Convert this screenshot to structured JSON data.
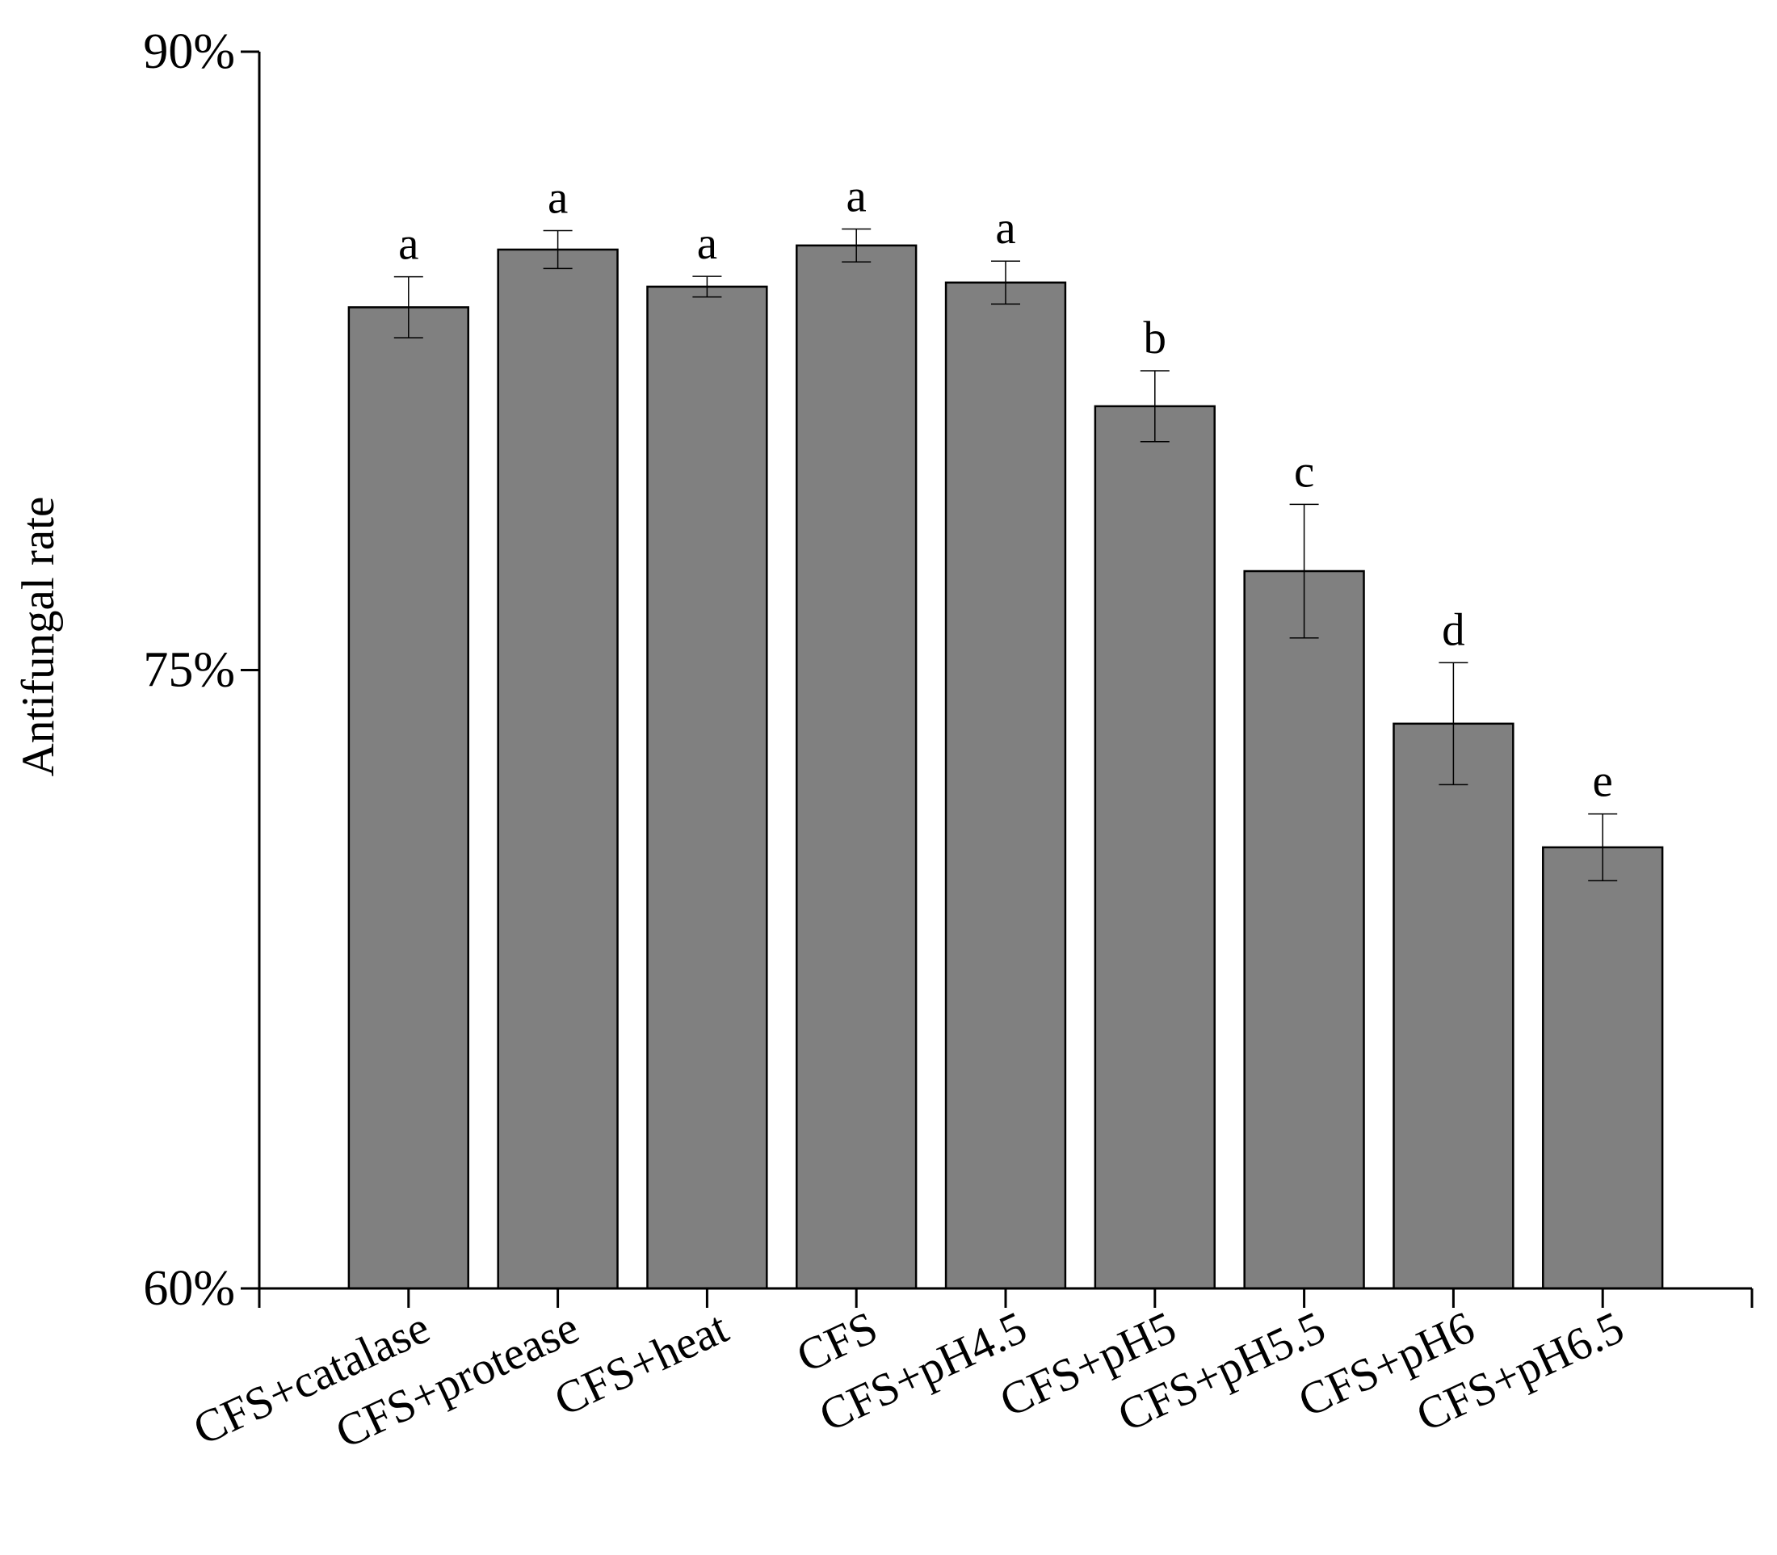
{
  "chart_data": {
    "type": "bar",
    "y_label": "Antifungal rate",
    "categories": [
      "CFS+catalase",
      "CFS+protease",
      "CFS+heat",
      "CFS",
      "CFS+pH4.5",
      "CFS+pH5",
      "CFS+pH5.5",
      "CFS+pH6",
      "CFS+pH6.5"
    ],
    "values": [
      83.8,
      85.2,
      84.3,
      85.3,
      84.4,
      81.4,
      77.4,
      73.7,
      70.7
    ],
    "errors": [
      0.74,
      0.46,
      0.25,
      0.4,
      0.52,
      0.86,
      1.62,
      1.48,
      0.81
    ],
    "letters": [
      "a",
      "a",
      "a",
      "a",
      "a",
      "b",
      "c",
      "d",
      "e"
    ],
    "color": "#808080",
    "ylim": [
      60,
      90
    ],
    "yticks": [
      {
        "value": 60,
        "label": "60%"
      },
      {
        "value": 75,
        "label": "75%"
      },
      {
        "value": 90,
        "label": "90%"
      }
    ],
    "grid": false
  }
}
